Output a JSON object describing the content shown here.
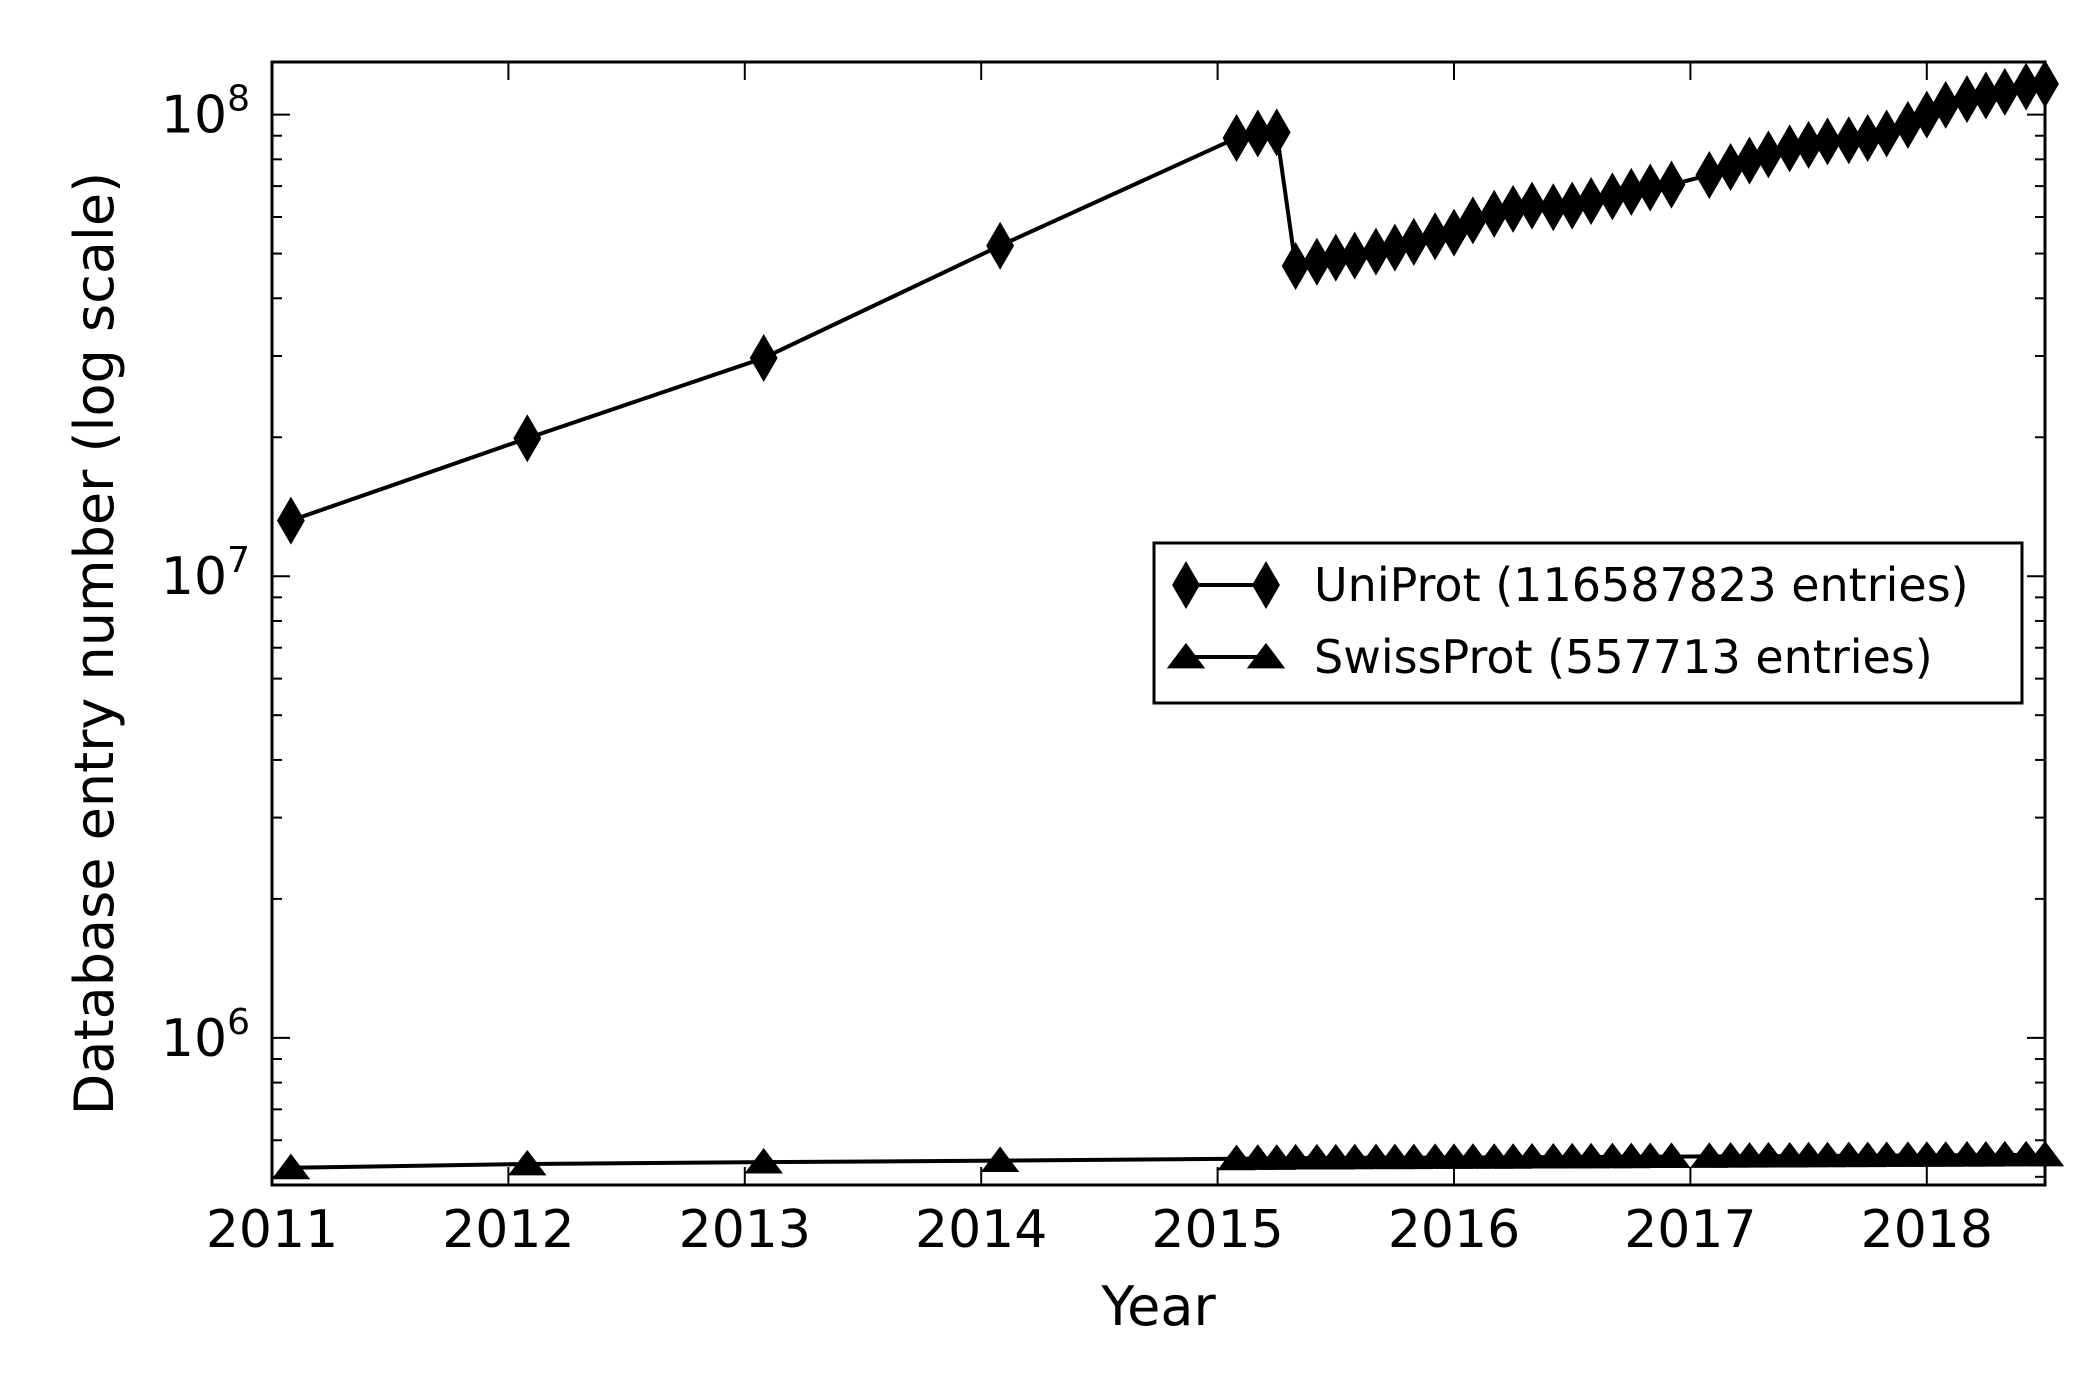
{
  "chart_data": {
    "type": "line",
    "xlabel": "Year",
    "ylabel": "Database entry number (log scale)",
    "y_scale": "log",
    "xlim": [
      2011,
      2018.5
    ],
    "ylim": [
      480000,
      130000000
    ],
    "x_ticks": [
      "2011",
      "2012",
      "2013",
      "2014",
      "2015",
      "2016",
      "2017",
      "2018"
    ],
    "y_ticks": [
      {
        "value": 1000000,
        "base": "10",
        "exp": "6"
      },
      {
        "value": 10000000,
        "base": "10",
        "exp": "7"
      },
      {
        "value": 100000000,
        "base": "10",
        "exp": "8"
      }
    ],
    "grid": false,
    "legend_position": "center-right",
    "series": [
      {
        "name": "UniProt (116587823 entries)",
        "marker": "diamond",
        "color": "#000000",
        "points": [
          [
            2011.08,
            13200000
          ],
          [
            2012.08,
            19900000
          ],
          [
            2013.08,
            29700000
          ],
          [
            2014.08,
            52000000
          ],
          [
            2015.08,
            89000000
          ],
          [
            2015.17,
            91000000
          ],
          [
            2015.25,
            91500000
          ],
          [
            2015.33,
            47000000
          ],
          [
            2015.42,
            48000000
          ],
          [
            2015.5,
            49000000
          ],
          [
            2015.58,
            49500000
          ],
          [
            2015.67,
            50500000
          ],
          [
            2015.75,
            51500000
          ],
          [
            2015.83,
            53000000
          ],
          [
            2015.92,
            54500000
          ],
          [
            2016.0,
            55500000
          ],
          [
            2016.08,
            59000000
          ],
          [
            2016.17,
            61000000
          ],
          [
            2016.25,
            62500000
          ],
          [
            2016.33,
            63500000
          ],
          [
            2016.42,
            63000000
          ],
          [
            2016.5,
            63500000
          ],
          [
            2016.58,
            65000000
          ],
          [
            2016.67,
            66500000
          ],
          [
            2016.75,
            68000000
          ],
          [
            2016.83,
            69500000
          ],
          [
            2016.92,
            70500000
          ],
          [
            2017.08,
            74000000
          ],
          [
            2017.17,
            77000000
          ],
          [
            2017.25,
            79500000
          ],
          [
            2017.33,
            82000000
          ],
          [
            2017.42,
            84500000
          ],
          [
            2017.5,
            86000000
          ],
          [
            2017.58,
            87500000
          ],
          [
            2017.67,
            88000000
          ],
          [
            2017.75,
            89000000
          ],
          [
            2017.83,
            91000000
          ],
          [
            2017.92,
            95000000
          ],
          [
            2018.0,
            100000000
          ],
          [
            2018.08,
            105000000
          ],
          [
            2018.17,
            108000000
          ],
          [
            2018.25,
            110000000
          ],
          [
            2018.33,
            112000000
          ],
          [
            2018.42,
            115000000
          ],
          [
            2018.5,
            116587823
          ]
        ]
      },
      {
        "name": "SwissProt (557713 entries)",
        "marker": "triangle",
        "color": "#000000",
        "points": [
          [
            2011.08,
            523000
          ],
          [
            2012.08,
            533000
          ],
          [
            2013.08,
            538000
          ],
          [
            2014.08,
            542000
          ],
          [
            2015.08,
            547000
          ],
          [
            2015.17,
            548000
          ],
          [
            2015.25,
            548000
          ],
          [
            2015.33,
            549000
          ],
          [
            2015.42,
            549000
          ],
          [
            2015.5,
            549000
          ],
          [
            2015.58,
            549500
          ],
          [
            2015.67,
            550000
          ],
          [
            2015.75,
            550000
          ],
          [
            2015.83,
            550000
          ],
          [
            2015.92,
            550500
          ],
          [
            2016.0,
            550500
          ],
          [
            2016.08,
            551000
          ],
          [
            2016.17,
            551000
          ],
          [
            2016.25,
            551000
          ],
          [
            2016.33,
            551500
          ],
          [
            2016.42,
            551500
          ],
          [
            2016.5,
            552000
          ],
          [
            2016.58,
            552000
          ],
          [
            2016.67,
            552500
          ],
          [
            2016.75,
            552500
          ],
          [
            2016.83,
            553000
          ],
          [
            2016.92,
            553000
          ],
          [
            2017.08,
            553500
          ],
          [
            2017.17,
            554000
          ],
          [
            2017.25,
            554000
          ],
          [
            2017.33,
            554500
          ],
          [
            2017.42,
            554500
          ],
          [
            2017.5,
            555000
          ],
          [
            2017.58,
            555000
          ],
          [
            2017.67,
            555500
          ],
          [
            2017.75,
            555500
          ],
          [
            2017.83,
            556000
          ],
          [
            2017.92,
            556000
          ],
          [
            2018.0,
            556500
          ],
          [
            2018.08,
            556500
          ],
          [
            2018.17,
            557000
          ],
          [
            2018.25,
            557000
          ],
          [
            2018.33,
            557500
          ],
          [
            2018.42,
            557500
          ],
          [
            2018.5,
            557713
          ]
        ]
      }
    ]
  }
}
